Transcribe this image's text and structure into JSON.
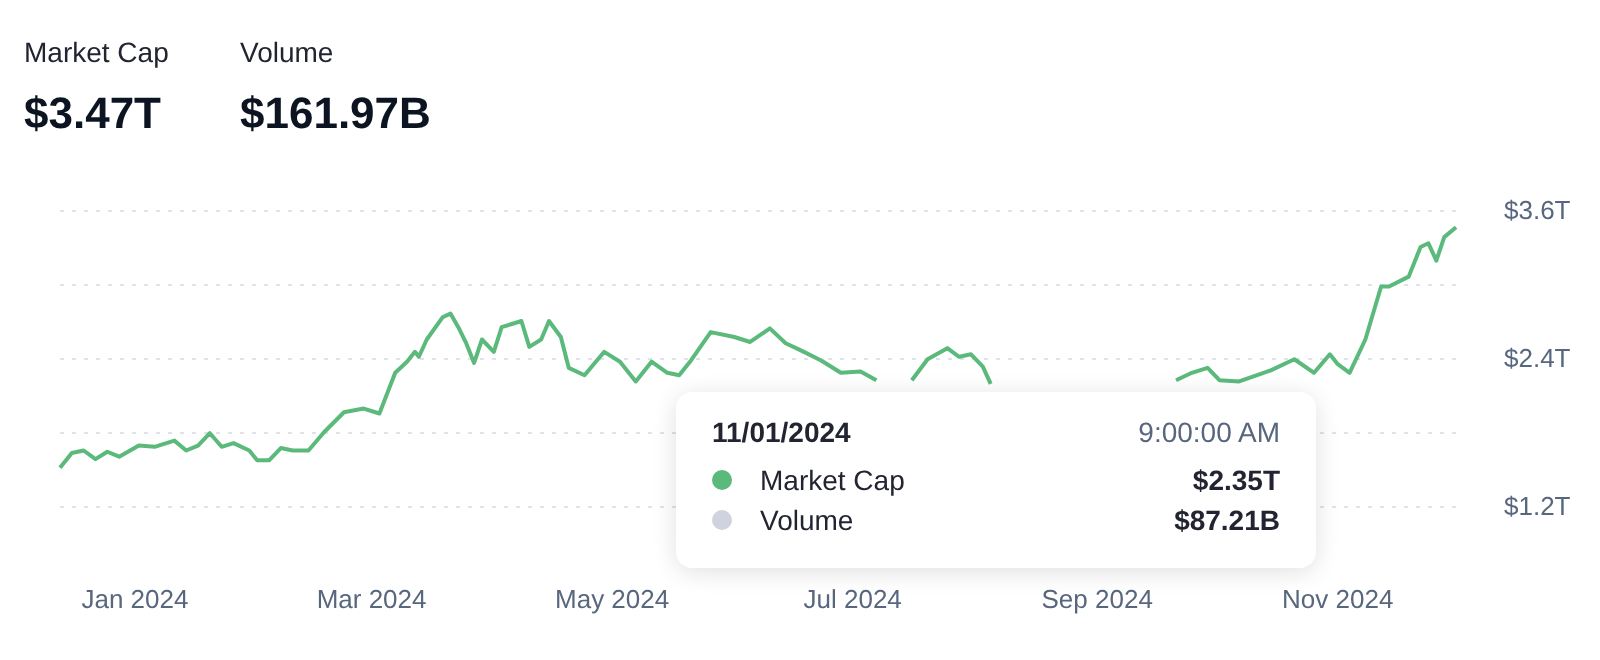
{
  "chart_data": {
    "type": "line",
    "annotations": [
      "Market Cap",
      "$3.47T",
      "Volume",
      "$161.97B",
      "11/01/2024",
      "9:00:00 AM",
      "Market Cap",
      "$2.35T",
      "Volume",
      "$87.21B"
    ],
    "x": [
      "2023-12-13",
      "2023-12-16",
      "2023-12-19",
      "2023-12-22",
      "2023-12-25",
      "2023-12-28",
      "2024-01-02",
      "2024-01-06",
      "2024-01-11",
      "2024-01-14",
      "2024-01-17",
      "2024-01-20",
      "2024-01-23",
      "2024-01-26",
      "2024-01-30",
      "2024-02-01",
      "2024-02-04",
      "2024-02-07",
      "2024-02-10",
      "2024-02-14",
      "2024-02-18",
      "2024-02-23",
      "2024-02-28",
      "2024-03-03",
      "2024-03-07",
      "2024-03-10",
      "2024-03-12",
      "2024-03-13",
      "2024-03-15",
      "2024-03-19",
      "2024-03-21",
      "2024-03-23",
      "2024-03-25",
      "2024-03-27",
      "2024-03-29",
      "2024-04-01",
      "2024-04-03",
      "2024-04-06",
      "2024-04-08",
      "2024-04-10",
      "2024-04-13",
      "2024-04-15",
      "2024-04-18",
      "2024-04-20",
      "2024-04-24",
      "2024-04-29",
      "2024-05-03",
      "2024-05-07",
      "2024-05-11",
      "2024-05-15",
      "2024-05-18",
      "2024-05-21",
      "2024-05-26",
      "2024-06-01",
      "2024-06-05",
      "2024-06-10",
      "2024-06-14",
      "2024-06-18",
      "2024-06-23",
      "2024-06-28",
      "2024-07-03",
      "2024-07-07",
      "2024-07-11",
      "2024-07-16",
      "2024-07-20",
      "2024-07-25",
      "2024-07-28",
      "2024-07-31",
      "2024-08-03",
      "2024-08-05",
      "2024-08-15",
      "2024-09-21",
      "2024-09-25",
      "2024-09-29",
      "2024-10-02",
      "2024-10-07",
      "2024-10-15",
      "2024-10-21",
      "2024-10-26",
      "2024-10-30",
      "2024-11-01",
      "2024-11-04",
      "2024-11-08",
      "2024-11-12",
      "2024-11-14",
      "2024-11-19",
      "2024-11-22",
      "2024-11-24",
      "2024-11-26",
      "2024-11-28",
      "2024-12-01"
    ],
    "series": [
      {
        "color": "#5cb97c",
        "values": [
          1.51,
          1.63,
          1.65,
          1.58,
          1.64,
          1.6,
          1.69,
          1.68,
          1.73,
          1.65,
          1.69,
          1.79,
          1.68,
          1.71,
          1.65,
          1.57,
          1.57,
          1.67,
          1.65,
          1.65,
          1.8,
          1.96,
          1.99,
          1.95,
          2.28,
          2.37,
          2.45,
          2.41,
          2.55,
          2.73,
          2.76,
          2.65,
          2.52,
          2.36,
          2.55,
          2.45,
          2.65,
          2.68,
          2.7,
          2.49,
          2.55,
          2.7,
          2.57,
          2.32,
          2.26,
          2.45,
          2.37,
          2.21,
          2.37,
          2.28,
          2.26,
          2.38,
          2.61,
          2.57,
          2.53,
          2.64,
          2.52,
          2.46,
          2.38,
          2.28,
          2.29,
          2.22,
          null,
          2.22,
          2.39,
          2.48,
          2.41,
          2.43,
          2.33,
          2.19,
          null,
          2.22,
          2.28,
          2.32,
          2.22,
          2.21,
          2.3,
          2.39,
          2.28,
          2.43,
          2.35,
          2.28,
          2.55,
          2.98,
          2.98,
          3.06,
          3.3,
          3.33,
          3.19,
          3.38,
          3.46
        ]
      }
    ],
    "xlim": [
      "2023-12-13",
      "2024-12-02"
    ],
    "xticks": [
      {
        "value": "2024-01-01",
        "label": "Jan 2024"
      },
      {
        "value": "2024-03-01",
        "label": "Mar 2024"
      },
      {
        "value": "2024-05-01",
        "label": "May 2024"
      },
      {
        "value": "2024-07-01",
        "label": "Jul 2024"
      },
      {
        "value": "2024-09-01",
        "label": "Sep 2024"
      },
      {
        "value": "2024-11-01",
        "label": "Nov 2024"
      }
    ],
    "ylim": [
      1.2,
      3.6
    ],
    "yticks": [
      {
        "value": 1.2,
        "label": "$1.2T"
      },
      {
        "value": 1.8,
        "label": null
      },
      {
        "value": 2.4,
        "label": "$2.4T"
      },
      {
        "value": 3.0,
        "label": null
      },
      {
        "value": 3.6,
        "label": "$3.6T"
      }
    ],
    "grid": "y"
  }
}
